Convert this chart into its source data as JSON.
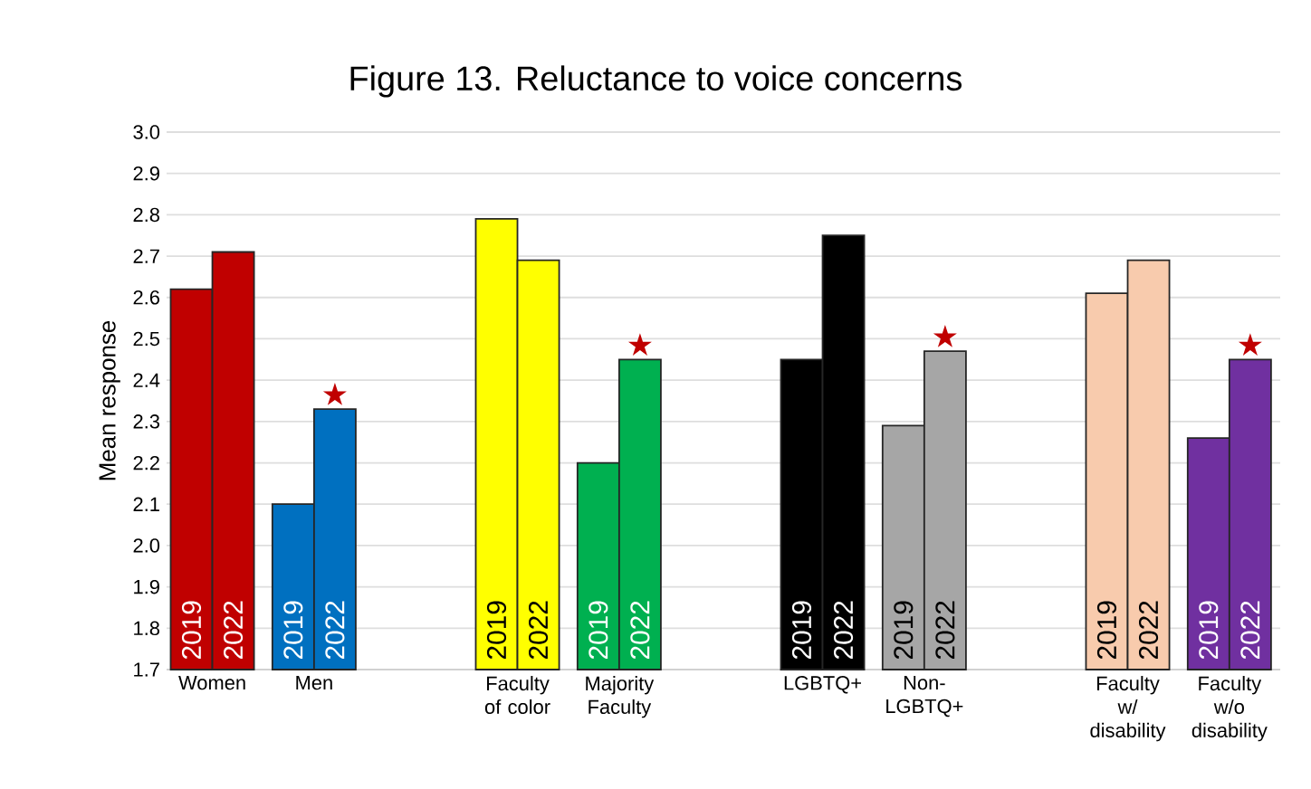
{
  "chart_data": {
    "type": "bar",
    "title": "Figure 13. Reluctance to voice concerns",
    "ylabel": "Mean response",
    "categories": [
      "Women",
      "Men",
      null,
      "Faculty of color",
      "Majority Faculty",
      null,
      "LGBTQ+",
      "Non-LGBTQ+",
      null,
      "Faculty w/ disability",
      "Faculty w/o disability"
    ],
    "series": [
      {
        "name": "2019",
        "colors": [
          "#c00000",
          "#0070c0",
          null,
          "#ffff00",
          "#00b050",
          null,
          "#000000",
          "#a6a6a6",
          null,
          "#f8cbad",
          "#7030a0"
        ],
        "values": [
          2.62,
          2.1,
          null,
          2.79,
          2.2,
          null,
          2.45,
          2.29,
          null,
          2.61,
          2.26
        ]
      },
      {
        "name": "2022",
        "colors": [
          "#c00000",
          "#0070c0",
          null,
          "#ffff00",
          "#00b050",
          null,
          "#000000",
          "#a6a6a6",
          null,
          "#f8cbad",
          "#7030a0"
        ],
        "values": [
          2.71,
          2.33,
          null,
          2.69,
          2.45,
          null,
          2.75,
          2.47,
          null,
          2.69,
          2.45
        ]
      }
    ],
    "ylim": [
      1.7,
      3.0
    ],
    "yticks": [
      {
        "value": 1.7,
        "label": "1.7"
      },
      {
        "value": 1.8,
        "label": "1.8"
      },
      {
        "value": 1.9,
        "label": "1.9"
      },
      {
        "value": 2.0,
        "label": "2.0"
      },
      {
        "value": 2.1,
        "label": "2.1"
      },
      {
        "value": 2.2,
        "label": "2.2"
      },
      {
        "value": 2.3,
        "label": "2.3"
      },
      {
        "value": 2.4,
        "label": "2.4"
      },
      {
        "value": 2.5,
        "label": "2.5"
      },
      {
        "value": 2.6,
        "label": "2.6"
      },
      {
        "value": 2.7,
        "label": "2.7"
      },
      {
        "value": 2.8,
        "label": "2.8"
      },
      {
        "value": 2.9,
        "label": "2.9"
      },
      {
        "value": 3.0,
        "label": "3.0"
      }
    ],
    "grid": "y",
    "annotations": [
      {
        "text": "★",
        "x": "Men",
        "y": 2.33
      },
      {
        "text": "★",
        "x": "Majority Faculty",
        "y": 2.45
      },
      {
        "text": "★",
        "x": "Non-LGBTQ+",
        "y": 2.47
      },
      {
        "text": "★",
        "x": "Faculty w/o disability",
        "y": 2.45
      }
    ]
  }
}
